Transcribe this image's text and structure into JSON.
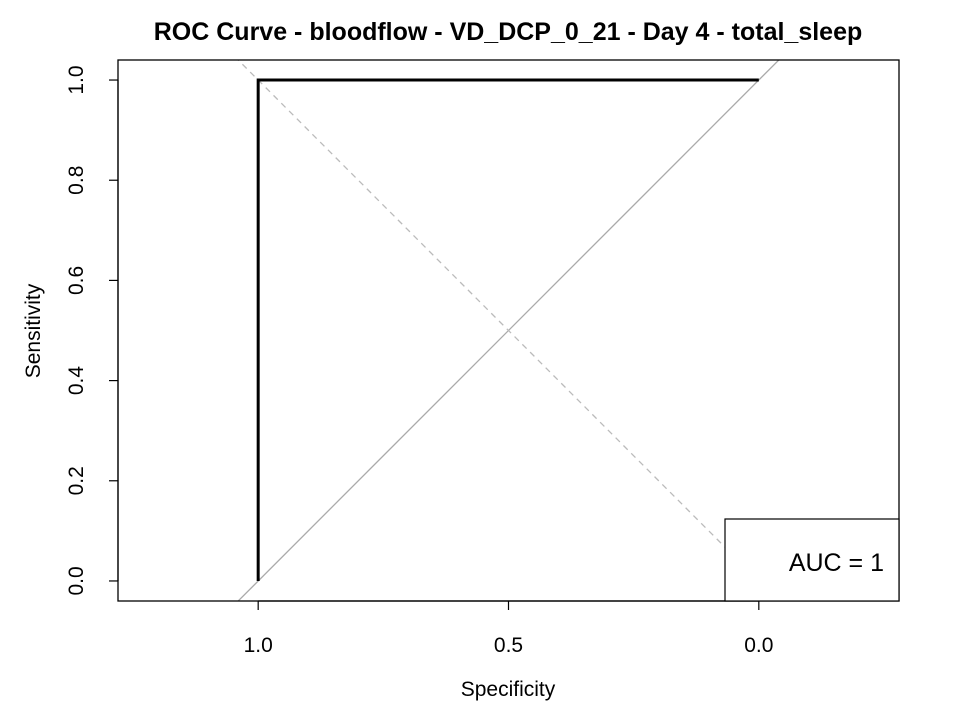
{
  "chart_data": {
    "type": "line",
    "title": "ROC Curve - bloodflow - VD_DCP_0_21 - Day 4 - total_sleep",
    "xlabel": "Specificity",
    "ylabel": "Sensitivity",
    "x_reversed": true,
    "xlim": [
      1.28,
      -0.28
    ],
    "ylim": [
      -0.04,
      1.04
    ],
    "x_ticks": [
      1.0,
      0.5,
      0.0
    ],
    "x_tick_labels": [
      "1.0",
      "0.5",
      "0.0"
    ],
    "y_ticks": [
      0.0,
      0.2,
      0.4,
      0.6,
      0.8,
      1.0
    ],
    "y_tick_labels": [
      "0.0",
      "0.2",
      "0.4",
      "0.6",
      "0.8",
      "1.0"
    ],
    "series": [
      {
        "specificity": [
          1.0,
          1.0,
          0.0
        ],
        "sensitivity": [
          0.0,
          1.0,
          1.0
        ],
        "color": "#000000"
      }
    ],
    "reference_lines": [
      {
        "kind": "diagonal-solid",
        "color": "#aaaaaa"
      },
      {
        "kind": "diagonal-dashed",
        "color": "#bbbbbb"
      }
    ],
    "legend": {
      "position": "bottom-right",
      "text": "AUC = 1"
    },
    "grid": false
  }
}
